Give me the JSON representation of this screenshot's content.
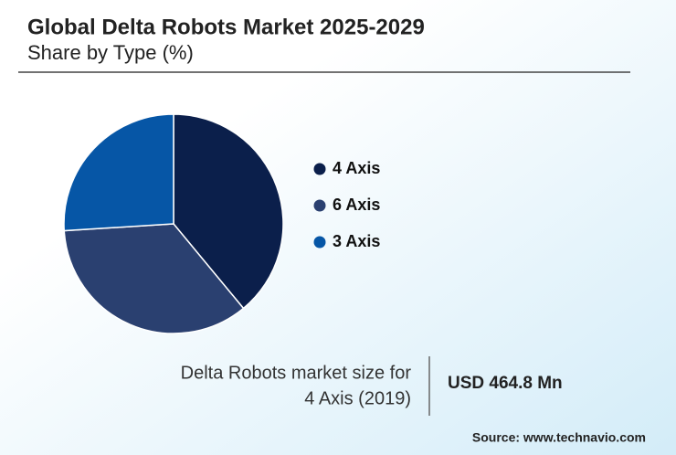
{
  "chart_data": {
    "type": "pie",
    "title": "Global Delta Robots Market 2025-2029",
    "subtitle": "Share by Type (%)",
    "categories": [
      "4 Axis",
      "6 Axis",
      "3 Axis"
    ],
    "values": [
      39,
      35,
      26
    ],
    "colors": [
      "#0b1f4b",
      "#2a4070",
      "#0656a6"
    ],
    "annotation": [
      "Delta Robots market size for",
      "4 Axis (2019)"
    ],
    "highlight": "USD 464.8 Mn",
    "source": "Source: www.technavio.com"
  }
}
